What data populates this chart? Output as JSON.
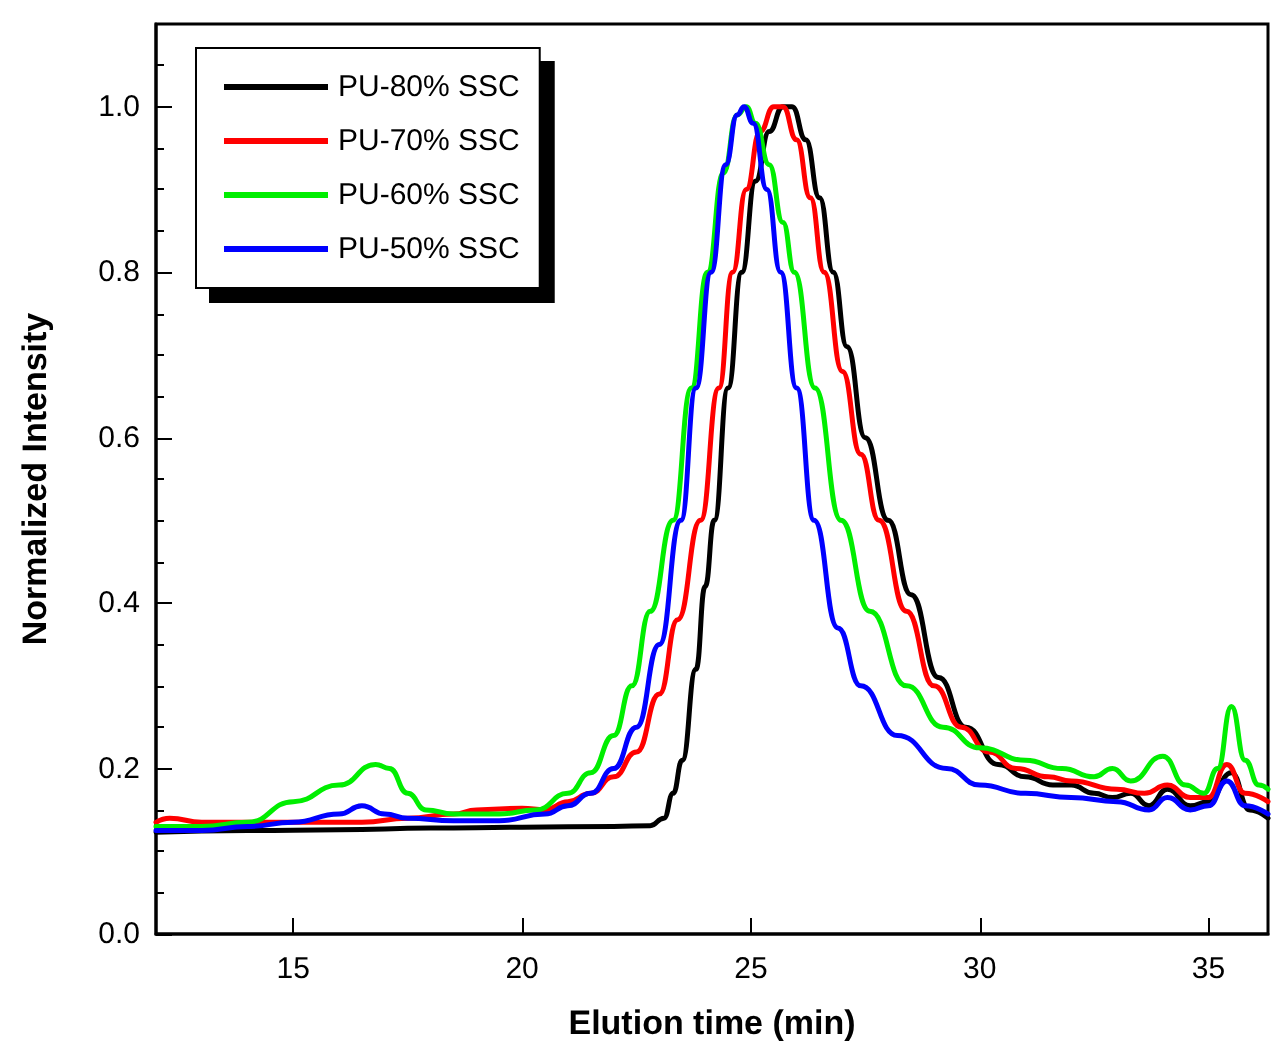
{
  "chart_data": {
    "type": "line",
    "xlabel": "Elution time (min)",
    "ylabel": "Normalized Intensity",
    "xlim": [
      12,
      36.3
    ],
    "xticks": [
      15,
      20,
      25,
      30,
      35
    ],
    "ylim": [
      0,
      1.1
    ],
    "yticks": [
      {
        "value": 0,
        "label": "0.0"
      },
      {
        "value": 0.2,
        "label": "0.2"
      },
      {
        "value": 0.4,
        "label": "0.4"
      },
      {
        "value": 0.6,
        "label": "0.6"
      },
      {
        "value": 0.8,
        "label": "0.8"
      },
      {
        "value": 1,
        "label": "1.0"
      }
    ],
    "grid": false,
    "legend": "top left",
    "marker": "none",
    "line_style": "solid",
    "series": [
      {
        "name": "PU-80% SSC",
        "color": "#000000",
        "x": [
          12,
          14,
          16,
          18,
          20,
          22,
          22.8,
          23.1,
          23.3,
          23.5,
          23.8,
          24.0,
          24.2,
          24.5,
          24.8,
          25.1,
          25.4,
          25.7,
          25.9,
          26.2,
          26.5,
          26.8,
          27.1,
          27.5,
          28.0,
          28.5,
          29.1,
          29.7,
          30.4,
          31.0,
          31.6,
          32.0,
          32.5,
          32.9,
          33.3,
          33.7,
          34.1,
          34.6,
          35.0,
          35.5,
          35.9,
          36.3
        ],
        "values": [
          0.123,
          0.125,
          0.126,
          0.128,
          0.129,
          0.13,
          0.131,
          0.14,
          0.17,
          0.21,
          0.32,
          0.42,
          0.5,
          0.66,
          0.8,
          0.91,
          0.97,
          1.0,
          1.0,
          0.96,
          0.89,
          0.8,
          0.71,
          0.6,
          0.5,
          0.41,
          0.31,
          0.25,
          0.205,
          0.19,
          0.18,
          0.18,
          0.17,
          0.165,
          0.17,
          0.155,
          0.175,
          0.155,
          0.16,
          0.195,
          0.15,
          0.14
        ]
      },
      {
        "name": "PU-70% SSC",
        "color": "#ff0000",
        "x": [
          12,
          12.3,
          13,
          15,
          16.5,
          17.5,
          18.5,
          19,
          20,
          20.5,
          21,
          21.5,
          22,
          22.5,
          23,
          23.4,
          23.9,
          24.3,
          24.6,
          24.9,
          25.2,
          25.5,
          25.7,
          26.0,
          26.3,
          26.6,
          27.0,
          27.4,
          27.8,
          28.4,
          29.0,
          29.6,
          30.2,
          30.8,
          31.5,
          32.0,
          33.0,
          33.6,
          34.1,
          34.6,
          35.0,
          35.4,
          35.8,
          36.3
        ],
        "values": [
          0.135,
          0.14,
          0.135,
          0.135,
          0.135,
          0.14,
          0.145,
          0.15,
          0.152,
          0.15,
          0.16,
          0.17,
          0.19,
          0.22,
          0.29,
          0.38,
          0.5,
          0.66,
          0.8,
          0.9,
          0.97,
          1.0,
          1.0,
          0.96,
          0.89,
          0.8,
          0.68,
          0.58,
          0.5,
          0.39,
          0.3,
          0.25,
          0.22,
          0.2,
          0.19,
          0.185,
          0.175,
          0.17,
          0.18,
          0.165,
          0.165,
          0.205,
          0.17,
          0.16
        ]
      },
      {
        "name": "PU-60% SSC",
        "color": "#00ee00",
        "x": [
          12,
          13,
          14,
          15,
          16,
          16.8,
          17.1,
          17.5,
          17.9,
          18.5,
          19.5,
          20.3,
          21,
          21.5,
          22,
          22.4,
          22.8,
          23.3,
          23.7,
          24.05,
          24.4,
          24.7,
          24.9,
          25.1,
          25.4,
          25.7,
          25.95,
          26.4,
          26.97,
          27.6,
          28.4,
          29.2,
          30.0,
          31.0,
          31.8,
          32.5,
          32.9,
          33.3,
          34.0,
          34.5,
          34.9,
          35.2,
          35.5,
          35.8,
          36.1,
          36.3
        ],
        "values": [
          0.13,
          0.13,
          0.135,
          0.16,
          0.18,
          0.205,
          0.2,
          0.17,
          0.15,
          0.145,
          0.145,
          0.15,
          0.17,
          0.195,
          0.24,
          0.3,
          0.39,
          0.5,
          0.66,
          0.8,
          0.92,
          0.99,
          1.0,
          0.98,
          0.93,
          0.86,
          0.8,
          0.66,
          0.5,
          0.39,
          0.3,
          0.25,
          0.225,
          0.21,
          0.2,
          0.19,
          0.2,
          0.185,
          0.215,
          0.18,
          0.17,
          0.2,
          0.275,
          0.21,
          0.18,
          0.175
        ]
      },
      {
        "name": "PU-50% SSC",
        "color": "#0000ff",
        "x": [
          12,
          13,
          14,
          15,
          16,
          16.5,
          17,
          17.5,
          18.5,
          19.5,
          20.5,
          21,
          21.5,
          22,
          22.5,
          23,
          23.47,
          23.8,
          24.13,
          24.45,
          24.7,
          24.85,
          25.05,
          25.35,
          25.65,
          26.0,
          26.38,
          26.9,
          27.4,
          28.2,
          29.28,
          30.0,
          31.0,
          32.0,
          33.0,
          33.7,
          34.1,
          34.6,
          35.0,
          35.4,
          35.8,
          36.3
        ],
        "values": [
          0.125,
          0.125,
          0.13,
          0.135,
          0.145,
          0.155,
          0.145,
          0.14,
          0.137,
          0.137,
          0.145,
          0.155,
          0.17,
          0.2,
          0.25,
          0.35,
          0.5,
          0.66,
          0.8,
          0.93,
          0.99,
          1.0,
          0.98,
          0.9,
          0.8,
          0.66,
          0.5,
          0.37,
          0.3,
          0.24,
          0.2,
          0.18,
          0.17,
          0.165,
          0.16,
          0.15,
          0.165,
          0.15,
          0.155,
          0.185,
          0.155,
          0.145
        ]
      }
    ]
  }
}
